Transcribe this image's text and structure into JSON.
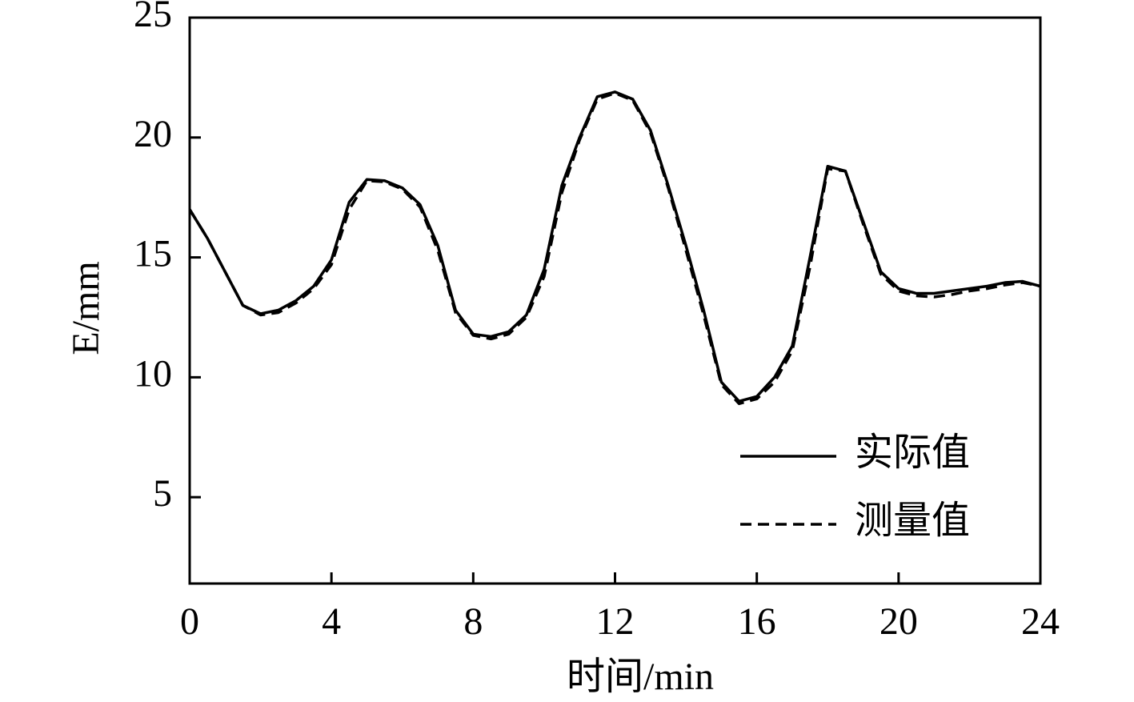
{
  "chart_data": {
    "type": "line",
    "x_label": "时间/min",
    "y_label": "E/mm",
    "x": [
      0,
      0.5,
      1,
      1.5,
      2,
      2.5,
      3,
      3.5,
      4,
      4.5,
      5,
      5.5,
      6,
      6.5,
      7,
      7.5,
      8,
      8.5,
      9,
      9.5,
      10,
      10.5,
      11,
      11.5,
      12,
      12.5,
      13,
      13.5,
      14,
      14.5,
      15,
      15.5,
      16,
      16.5,
      17,
      17.5,
      18,
      18.5,
      19,
      19.5,
      20,
      20.5,
      21,
      21.5,
      22,
      22.5,
      23,
      23.5,
      24
    ],
    "series": [
      {
        "name": "实际值",
        "color": "#000000",
        "dash": "solid",
        "values": [
          17.0,
          15.8,
          14.4,
          13.0,
          12.65,
          12.8,
          13.2,
          13.8,
          14.9,
          17.3,
          18.25,
          18.2,
          17.9,
          17.2,
          15.5,
          12.8,
          11.8,
          11.7,
          11.9,
          12.6,
          14.5,
          18.0,
          20.0,
          21.7,
          21.9,
          21.6,
          20.3,
          18.0,
          15.5,
          12.8,
          9.8,
          9.0,
          9.2,
          10.0,
          11.3,
          15.0,
          18.8,
          18.6,
          16.5,
          14.4,
          13.7,
          13.5,
          13.5,
          13.6,
          13.7,
          13.8,
          13.95,
          14.0,
          13.8
        ]
      },
      {
        "name": "测量值",
        "color": "#000000",
        "dash": "dashed",
        "values": [
          17.0,
          15.8,
          14.4,
          13.0,
          12.6,
          12.7,
          13.1,
          13.7,
          14.7,
          17.0,
          18.2,
          18.15,
          17.85,
          17.1,
          15.3,
          12.7,
          11.75,
          11.6,
          11.8,
          12.5,
          14.2,
          17.7,
          19.9,
          21.6,
          21.85,
          21.55,
          20.2,
          17.9,
          15.3,
          12.6,
          9.7,
          8.9,
          9.1,
          9.8,
          11.1,
          14.6,
          18.7,
          18.6,
          16.4,
          14.3,
          13.6,
          13.4,
          13.35,
          13.45,
          13.6,
          13.7,
          13.85,
          13.95,
          13.8
        ]
      }
    ],
    "xlim": [
      0,
      24
    ],
    "xticks": [
      0,
      4,
      8,
      12,
      16,
      20,
      24
    ],
    "ylim": [
      1.4,
      25
    ],
    "yticks": [
      5,
      10,
      15,
      20,
      25
    ],
    "legend": "lower right"
  }
}
